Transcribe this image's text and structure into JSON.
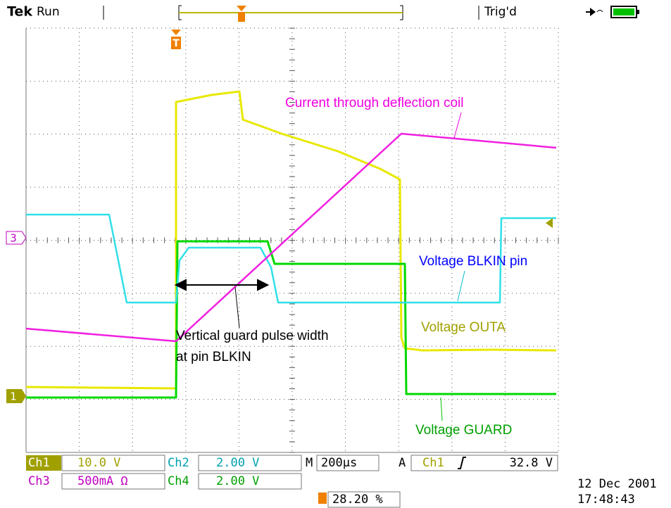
{
  "header": {
    "brand": "Tek",
    "status": "Run",
    "trigger_status": "Trig'd"
  },
  "markers": {
    "trigger": "T",
    "ch3": "3",
    "ch1": "1"
  },
  "annotations": {
    "current": "Current through deflection coil",
    "blkin": "Voltage BLKIN pin",
    "outa": "Voltage OUTA",
    "pulse_line1": "Vertical guard pulse width",
    "pulse_line2": "at pin BLKIN",
    "guard": "Voltage GUARD"
  },
  "readouts": {
    "ch1": "Ch1",
    "ch1_scale": "10.0 V",
    "ch2": "Ch2",
    "ch2_scale": "2.00 V",
    "timebase_label": "M",
    "timebase": "200µs",
    "acq": "A",
    "trig_source": "Ch1",
    "trig_level": "32.8 V",
    "ch3": "Ch3",
    "ch3_scale": "500mA Ω",
    "ch4": "Ch4",
    "ch4_scale": "2.00 V",
    "trig_position": "28.20 %"
  },
  "date": "12 Dec 2001",
  "time": "17:48:43"
}
